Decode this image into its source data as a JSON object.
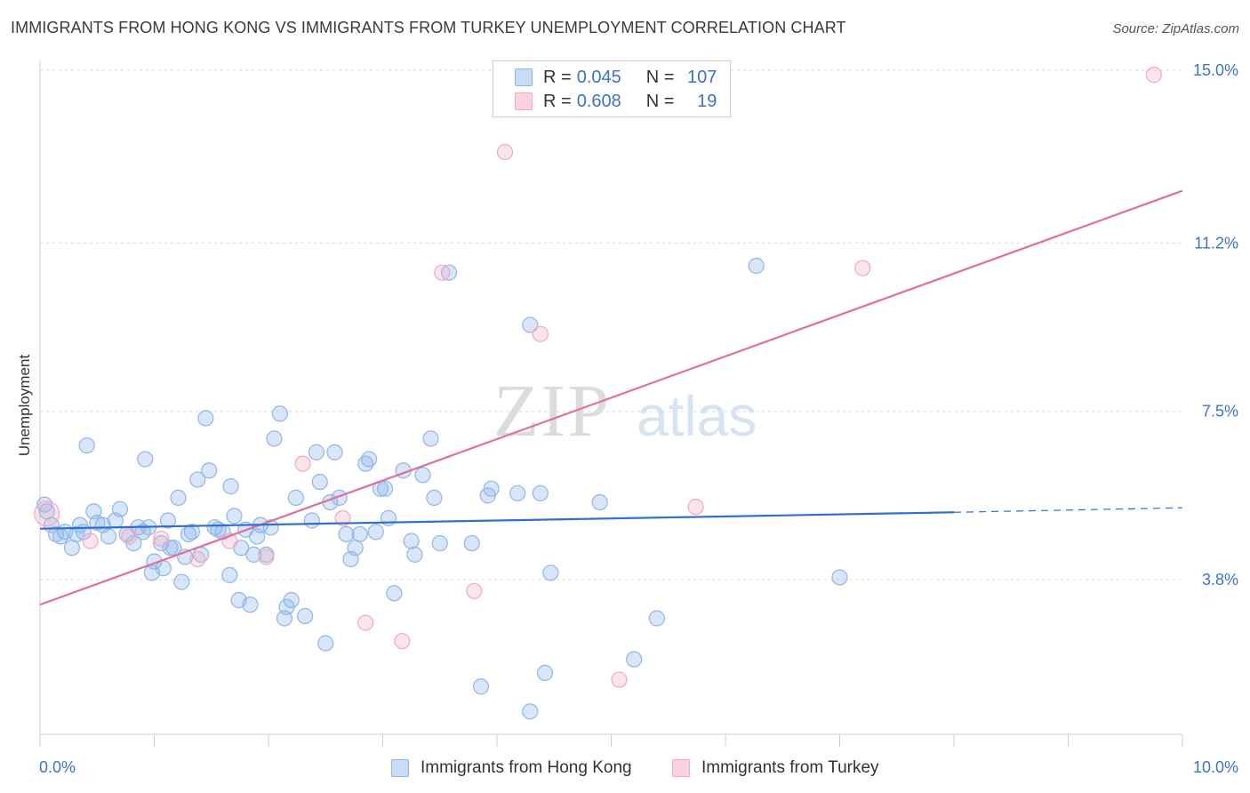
{
  "title": "IMMIGRANTS FROM HONG KONG VS IMMIGRANTS FROM TURKEY UNEMPLOYMENT CORRELATION CHART",
  "source": "Source: ZipAtlas.com",
  "watermark": {
    "zip": "ZIP",
    "atlas": "atlas"
  },
  "legend": {
    "rows": [
      {
        "r_label": "R =",
        "r_value": "0.045",
        "n_label": "N =",
        "n_value": "107",
        "color": "#8fb6ea"
      },
      {
        "r_label": "R =",
        "r_value": "0.608",
        "n_label": "N =",
        "n_value": "19",
        "color": "#f2a8c0"
      }
    ]
  },
  "bottom_legend": {
    "hk": "Immigrants from Hong Kong",
    "tr": "Immigrants from Turkey"
  },
  "chart_data": {
    "type": "scatter",
    "title": "IMMIGRANTS FROM HONG KONG VS IMMIGRANTS FROM TURKEY UNEMPLOYMENT CORRELATION CHART",
    "xlabel": "",
    "ylabel": "Unemployment",
    "xlim": [
      0,
      10
    ],
    "ylim": [
      0,
      15.5
    ],
    "x_tick_labels": [
      "0.0%",
      "10.0%"
    ],
    "y_ticks": [
      3.8,
      7.5,
      11.2,
      15.0
    ],
    "y_tick_labels": [
      "3.8%",
      "7.5%",
      "11.2%",
      "15.0%"
    ],
    "grid": "horizontal dashed",
    "colors": {
      "hk": "#8fb6ea",
      "hk_line": "#2f6fcf",
      "tr": "#f2a8c0",
      "tr_line": "#e07099",
      "tick_label": "#3b73c9"
    },
    "series": [
      {
        "name": "Immigrants from Hong Kong",
        "points": [
          [
            0.04,
            5.45
          ],
          [
            0.06,
            5.3
          ],
          [
            0.1,
            5.0
          ],
          [
            0.14,
            4.8
          ],
          [
            0.18,
            4.75
          ],
          [
            0.22,
            4.85
          ],
          [
            0.28,
            4.5
          ],
          [
            0.32,
            4.8
          ],
          [
            0.35,
            5.0
          ],
          [
            0.38,
            4.85
          ],
          [
            0.41,
            6.75
          ],
          [
            0.47,
            5.3
          ],
          [
            0.5,
            5.05
          ],
          [
            0.55,
            5.0
          ],
          [
            0.6,
            4.75
          ],
          [
            0.66,
            5.1
          ],
          [
            0.7,
            5.35
          ],
          [
            0.76,
            4.8
          ],
          [
            0.82,
            4.6
          ],
          [
            0.86,
            4.95
          ],
          [
            0.9,
            4.85
          ],
          [
            0.92,
            6.45
          ],
          [
            0.95,
            4.95
          ],
          [
            0.98,
            3.95
          ],
          [
            1.0,
            4.2
          ],
          [
            1.06,
            4.6
          ],
          [
            1.08,
            4.05
          ],
          [
            1.12,
            5.1
          ],
          [
            1.14,
            4.5
          ],
          [
            1.17,
            4.5
          ],
          [
            1.21,
            5.6
          ],
          [
            1.24,
            3.75
          ],
          [
            1.27,
            4.3
          ],
          [
            1.3,
            4.8
          ],
          [
            1.33,
            4.85
          ],
          [
            1.38,
            6.0
          ],
          [
            1.41,
            4.35
          ],
          [
            1.45,
            7.35
          ],
          [
            1.48,
            6.2
          ],
          [
            1.53,
            4.95
          ],
          [
            1.56,
            4.9
          ],
          [
            1.6,
            4.85
          ],
          [
            1.66,
            3.9
          ],
          [
            1.67,
            5.85
          ],
          [
            1.7,
            5.2
          ],
          [
            1.74,
            3.35
          ],
          [
            1.76,
            4.5
          ],
          [
            1.8,
            4.9
          ],
          [
            1.84,
            3.25
          ],
          [
            1.87,
            4.35
          ],
          [
            1.9,
            4.75
          ],
          [
            1.93,
            5.0
          ],
          [
            1.98,
            4.35
          ],
          [
            2.02,
            4.95
          ],
          [
            2.05,
            6.9
          ],
          [
            2.1,
            7.45
          ],
          [
            2.14,
            2.95
          ],
          [
            2.16,
            3.2
          ],
          [
            2.2,
            3.35
          ],
          [
            2.24,
            5.6
          ],
          [
            2.32,
            3.0
          ],
          [
            2.38,
            5.1
          ],
          [
            2.42,
            6.6
          ],
          [
            2.45,
            5.95
          ],
          [
            2.5,
            2.4
          ],
          [
            2.54,
            5.5
          ],
          [
            2.58,
            6.6
          ],
          [
            2.62,
            5.6
          ],
          [
            2.68,
            4.8
          ],
          [
            2.72,
            4.25
          ],
          [
            2.76,
            4.5
          ],
          [
            2.8,
            4.8
          ],
          [
            2.85,
            6.35
          ],
          [
            2.88,
            6.45
          ],
          [
            2.94,
            4.85
          ],
          [
            2.98,
            5.8
          ],
          [
            3.02,
            5.8
          ],
          [
            3.05,
            5.15
          ],
          [
            3.1,
            3.5
          ],
          [
            3.18,
            6.2
          ],
          [
            3.25,
            4.65
          ],
          [
            3.28,
            4.35
          ],
          [
            3.35,
            6.1
          ],
          [
            3.42,
            6.9
          ],
          [
            3.45,
            5.6
          ],
          [
            3.5,
            4.6
          ],
          [
            3.58,
            10.55
          ],
          [
            3.78,
            4.6
          ],
          [
            3.86,
            1.45
          ],
          [
            3.92,
            5.65
          ],
          [
            3.95,
            5.8
          ],
          [
            4.18,
            5.7
          ],
          [
            4.29,
            9.4
          ],
          [
            4.29,
            0.9
          ],
          [
            4.38,
            5.7
          ],
          [
            4.42,
            1.75
          ],
          [
            4.47,
            3.95
          ],
          [
            4.9,
            5.5
          ],
          [
            5.2,
            2.05
          ],
          [
            5.4,
            2.95
          ],
          [
            6.27,
            10.7
          ],
          [
            7.0,
            3.85
          ]
        ],
        "trend": [
          [
            0.0,
            4.92
          ],
          [
            8.0,
            5.28
          ]
        ],
        "trend_dashed": [
          [
            8.0,
            5.28
          ],
          [
            10.0,
            5.38
          ]
        ]
      },
      {
        "name": "Immigrants from Turkey",
        "points": [
          [
            0.06,
            5.25
          ],
          [
            0.44,
            4.65
          ],
          [
            0.78,
            4.75
          ],
          [
            1.06,
            4.7
          ],
          [
            1.38,
            4.25
          ],
          [
            1.66,
            4.65
          ],
          [
            1.98,
            4.3
          ],
          [
            2.3,
            6.35
          ],
          [
            2.65,
            5.15
          ],
          [
            2.85,
            2.85
          ],
          [
            3.17,
            2.45
          ],
          [
            3.52,
            10.55
          ],
          [
            3.8,
            3.55
          ],
          [
            4.07,
            13.2
          ],
          [
            4.38,
            9.2
          ],
          [
            5.07,
            1.6
          ],
          [
            5.74,
            5.4
          ],
          [
            7.2,
            10.65
          ],
          [
            9.75,
            14.9
          ]
        ],
        "trend": [
          [
            0.0,
            3.25
          ],
          [
            10.0,
            12.35
          ]
        ]
      }
    ]
  }
}
